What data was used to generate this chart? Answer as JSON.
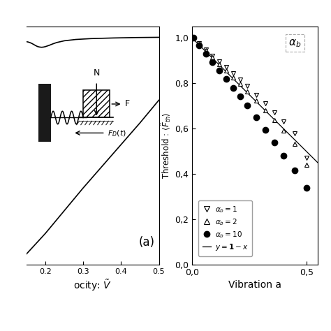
{
  "fig_width": 4.74,
  "fig_height": 4.74,
  "dpi": 100,
  "background_color": "#ffffff",
  "panel_a": {
    "label": "(a)",
    "xlabel": "ocity: $\\tilde{V}$",
    "xlim": [
      0.15,
      0.5
    ],
    "ylim": [
      -0.05,
      1.05
    ],
    "xticks": [
      0.2,
      0.3,
      0.4,
      0.5
    ],
    "xtick_labels": [
      "0.2",
      "0.3",
      "0.4",
      "0.5"
    ]
  },
  "panel_b": {
    "xlabel": "Vibration a",
    "ylabel": "Threshold : $\\langle \\tilde{F}_{th} \\rangle$",
    "xlim": [
      0.0,
      0.55
    ],
    "ylim": [
      0.0,
      1.05
    ],
    "xticks": [
      0.0,
      0.5
    ],
    "xtick_labels": [
      "0,0",
      "0,5"
    ],
    "yticks": [
      0.0,
      0.2,
      0.4,
      0.6,
      0.8,
      1.0
    ],
    "ytick_labels": [
      "0,0",
      "0,2",
      "0,4",
      "0,6",
      "0,8",
      "1,0"
    ],
    "series_ab1_x": [
      0.005,
      0.03,
      0.06,
      0.09,
      0.12,
      0.15,
      0.18,
      0.21,
      0.24,
      0.28,
      0.32,
      0.36,
      0.4,
      0.45,
      0.5
    ],
    "series_ab1_y": [
      1.0,
      0.975,
      0.948,
      0.922,
      0.895,
      0.87,
      0.843,
      0.815,
      0.787,
      0.748,
      0.71,
      0.67,
      0.63,
      0.578,
      0.47
    ],
    "series_ab2_x": [
      0.005,
      0.03,
      0.06,
      0.09,
      0.12,
      0.15,
      0.18,
      0.21,
      0.24,
      0.28,
      0.32,
      0.36,
      0.4,
      0.45,
      0.5
    ],
    "series_ab2_y": [
      1.0,
      0.973,
      0.944,
      0.915,
      0.885,
      0.856,
      0.826,
      0.796,
      0.765,
      0.723,
      0.68,
      0.636,
      0.591,
      0.533,
      0.44
    ],
    "series_ab10_x": [
      0.005,
      0.03,
      0.06,
      0.09,
      0.12,
      0.15,
      0.18,
      0.21,
      0.24,
      0.28,
      0.32,
      0.36,
      0.4,
      0.45,
      0.5
    ],
    "series_ab10_y": [
      1.0,
      0.966,
      0.93,
      0.893,
      0.855,
      0.818,
      0.78,
      0.742,
      0.703,
      0.65,
      0.595,
      0.539,
      0.482,
      0.415,
      0.34
    ],
    "legend_entries": [
      "$\\alpha_b = 1$",
      "$\\alpha_b = 2$",
      "$\\alpha_b = 10$",
      "$y = \\mathbf{1} - x$"
    ]
  }
}
